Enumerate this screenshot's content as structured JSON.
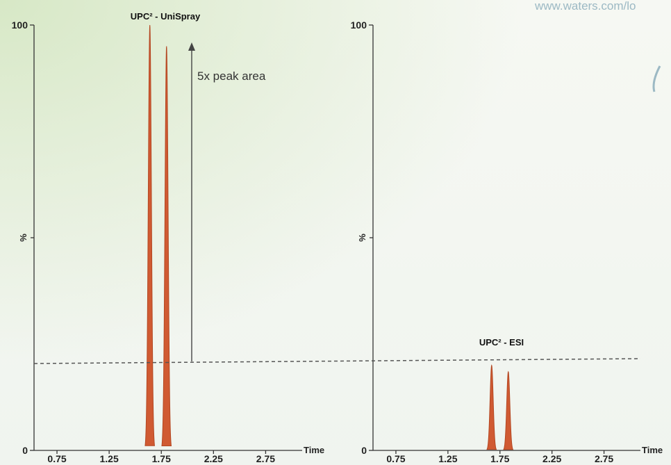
{
  "watermark": "www.waters.com/lo",
  "chart_data": [
    {
      "type": "line",
      "title": "UPC² - UniSpray",
      "xlabel": "Time",
      "ylabel": "%",
      "xlim": [
        0.53,
        3.1
      ],
      "ylim": [
        0,
        100
      ],
      "x_ticks": [
        "0.75",
        "1.25",
        "1.75",
        "2.25",
        "2.75"
      ],
      "y_ticks": [
        "0",
        "100"
      ],
      "peaks": [
        {
          "center": 1.64,
          "height": 100,
          "width": 0.045
        },
        {
          "center": 1.8,
          "height": 95,
          "width": 0.045
        }
      ],
      "annotation": "5x peak area",
      "color": "#d05a32"
    },
    {
      "type": "line",
      "title": "UPC² - ESI",
      "xlabel": "Time",
      "ylabel": "%",
      "xlim": [
        0.53,
        3.1
      ],
      "ylim": [
        0,
        100
      ],
      "x_ticks": [
        "0.75",
        "1.25",
        "1.75",
        "2.25",
        "2.75"
      ],
      "y_ticks": [
        "0",
        "100"
      ],
      "peaks": [
        {
          "center": 1.67,
          "height": 20,
          "width": 0.045
        },
        {
          "center": 1.83,
          "height": 18.5,
          "width": 0.045
        }
      ],
      "color": "#d05a32"
    }
  ]
}
